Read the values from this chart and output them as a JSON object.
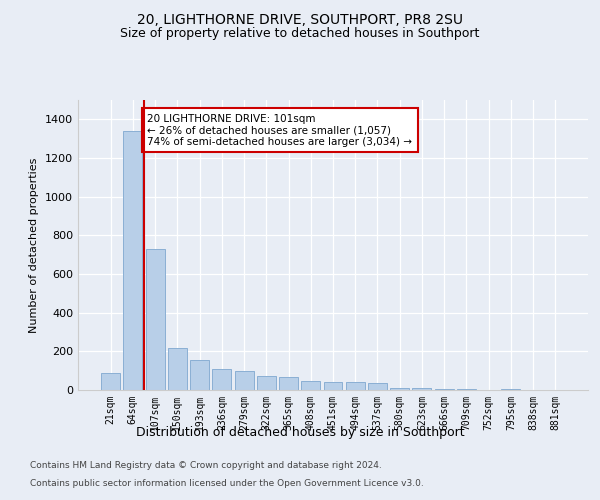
{
  "title": "20, LIGHTHORNE DRIVE, SOUTHPORT, PR8 2SU",
  "subtitle": "Size of property relative to detached houses in Southport",
  "xlabel": "Distribution of detached houses by size in Southport",
  "ylabel": "Number of detached properties",
  "bar_labels": [
    "21sqm",
    "64sqm",
    "107sqm",
    "150sqm",
    "193sqm",
    "236sqm",
    "279sqm",
    "322sqm",
    "365sqm",
    "408sqm",
    "451sqm",
    "494sqm",
    "537sqm",
    "580sqm",
    "623sqm",
    "666sqm",
    "709sqm",
    "752sqm",
    "795sqm",
    "838sqm",
    "881sqm"
  ],
  "bar_values": [
    90,
    1340,
    730,
    215,
    155,
    110,
    100,
    75,
    65,
    45,
    40,
    40,
    35,
    10,
    10,
    5,
    5,
    0,
    5,
    0,
    0
  ],
  "bar_color": "#b8cfe8",
  "bar_edge_color": "#8aafd4",
  "vline_color": "#cc0000",
  "vline_pos": 1.5,
  "annotation_text": "20 LIGHTHORNE DRIVE: 101sqm\n← 26% of detached houses are smaller (1,057)\n74% of semi-detached houses are larger (3,034) →",
  "annotation_box_facecolor": "white",
  "annotation_box_edgecolor": "#cc0000",
  "ylim": [
    0,
    1500
  ],
  "yticks": [
    0,
    200,
    400,
    600,
    800,
    1000,
    1200,
    1400
  ],
  "footer1": "Contains HM Land Registry data © Crown copyright and database right 2024.",
  "footer2": "Contains public sector information licensed under the Open Government Licence v3.0.",
  "bg_color": "#e8edf5",
  "grid_color": "#ffffff",
  "title_fontsize": 10,
  "subtitle_fontsize": 9,
  "ylabel_fontsize": 8,
  "xlabel_fontsize": 9,
  "tick_fontsize": 7,
  "footer_fontsize": 6.5
}
